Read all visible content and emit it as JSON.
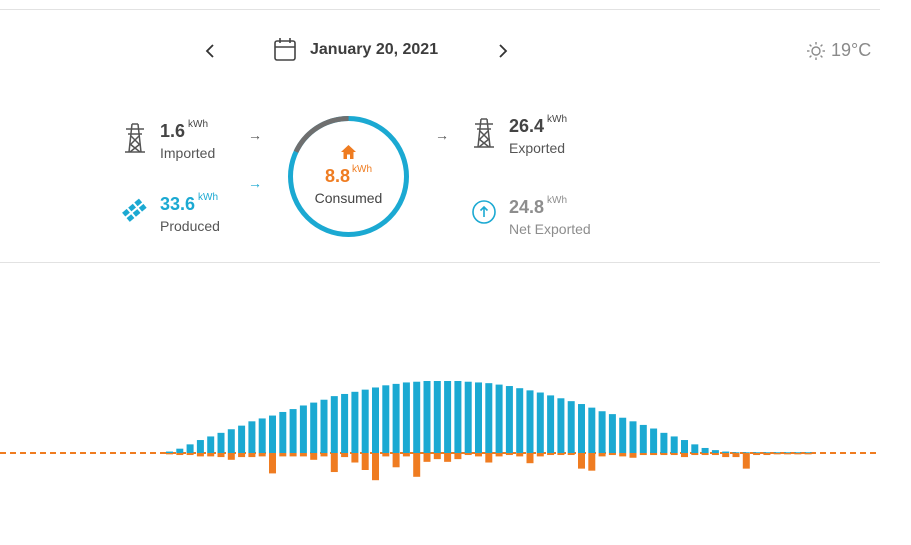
{
  "header": {
    "date": "January 20, 2021",
    "temperature": "19°C",
    "prev_icon": "chevron-left-icon",
    "next_icon": "chevron-right-icon",
    "calendar_icon": "calendar-icon",
    "weather_icon": "sun-icon"
  },
  "stats": {
    "imported": {
      "value": "1.6",
      "unit": "kWh",
      "label": "Imported",
      "icon": "power-tower-icon"
    },
    "produced": {
      "value": "33.6",
      "unit": "kWh",
      "label": "Produced",
      "icon": "solar-panel-icon"
    },
    "consumed": {
      "value": "8.8",
      "unit": "kWh",
      "label": "Consumed",
      "icon": "home-icon"
    },
    "exported": {
      "value": "26.4",
      "unit": "kWh",
      "label": "Exported",
      "icon": "power-tower-icon"
    },
    "net_exported": {
      "value": "24.8",
      "unit": "kWh",
      "label": "Net Exported",
      "icon": "up-arrow-circle-icon"
    }
  },
  "colors": {
    "produced": "#1ba9d2",
    "consumed": "#ef7c21",
    "text": "#444444",
    "muted": "#8d8d8d",
    "ring_grid": "#6f6f6f"
  },
  "ring": {
    "grid_fraction": 0.18
  },
  "chart_data": {
    "type": "bar",
    "series": [
      {
        "values": [
          0.02,
          0.06,
          0.12,
          0.18,
          0.23,
          0.28,
          0.33,
          0.38,
          0.44,
          0.48,
          0.52,
          0.57,
          0.61,
          0.66,
          0.7,
          0.74,
          0.79,
          0.82,
          0.85,
          0.88,
          0.91,
          0.94,
          0.96,
          0.98,
          0.99,
          1.0,
          1.0,
          1.0,
          1.0,
          0.99,
          0.98,
          0.97,
          0.95,
          0.93,
          0.9,
          0.87,
          0.84,
          0.8,
          0.76,
          0.72,
          0.68,
          0.63,
          0.58,
          0.54,
          0.49,
          0.44,
          0.39,
          0.34,
          0.28,
          0.23,
          0.18,
          0.12,
          0.07,
          0.04,
          0.02,
          0.01,
          0.01,
          0.01,
          0.01,
          0.01,
          0.01,
          0.01,
          0.01
        ]
      },
      {
        "values": [
          0.02,
          0.03,
          0.03,
          0.05,
          0.05,
          0.06,
          0.1,
          0.06,
          0.06,
          0.05,
          0.3,
          0.05,
          0.05,
          0.05,
          0.1,
          0.05,
          0.28,
          0.06,
          0.14,
          0.25,
          0.4,
          0.05,
          0.21,
          0.05,
          0.35,
          0.13,
          0.09,
          0.13,
          0.09,
          0.03,
          0.05,
          0.14,
          0.05,
          0.03,
          0.05,
          0.15,
          0.05,
          0.03,
          0.03,
          0.03,
          0.23,
          0.26,
          0.05,
          0.03,
          0.05,
          0.07,
          0.03,
          0.03,
          0.03,
          0.03,
          0.06,
          0.03,
          0.03,
          0.03,
          0.06,
          0.06,
          0.23,
          0.03,
          0.03,
          0.02,
          0.02,
          0.02,
          0.02
        ]
      }
    ]
  }
}
